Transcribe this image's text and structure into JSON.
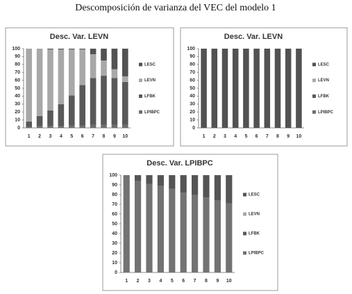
{
  "figure_title": "Descomposición de varianza del VEC del modelo 1",
  "chart_data": [
    {
      "type": "bar",
      "stacked": true,
      "title": "Desc. Var. LEVN",
      "categories": [
        "1",
        "2",
        "3",
        "4",
        "5",
        "6",
        "7",
        "8",
        "9",
        "10"
      ],
      "ylim": [
        0,
        100
      ],
      "yticks": [
        0,
        10,
        20,
        30,
        40,
        50,
        60,
        70,
        80,
        90,
        100
      ],
      "grid": false,
      "legend": "right",
      "series": [
        {
          "name": "LPIBPC",
          "color": "#6e6e6e",
          "values": [
            1,
            2,
            2,
            2,
            3,
            3,
            4,
            4,
            4,
            4
          ]
        },
        {
          "name": "LFBK",
          "color": "#595959",
          "values": [
            7,
            13,
            20,
            28,
            38,
            51,
            59,
            62,
            59,
            54
          ]
        },
        {
          "name": "LEVN",
          "color": "#a8a8a8",
          "values": [
            92,
            85,
            77,
            69,
            58,
            45,
            30,
            19,
            11,
            7
          ]
        },
        {
          "name": "LESC",
          "color": "#525252",
          "values": [
            0,
            0,
            1,
            1,
            1,
            1,
            7,
            15,
            26,
            35
          ]
        }
      ]
    },
    {
      "type": "bar",
      "stacked": true,
      "title": "Desc. Var. LEVN",
      "categories": [
        "1",
        "2",
        "3",
        "4",
        "5",
        "6",
        "7",
        "8",
        "9",
        "10"
      ],
      "ylim": [
        0,
        100
      ],
      "yticks": [
        0,
        10,
        20,
        30,
        40,
        50,
        60,
        70,
        80,
        90,
        100
      ],
      "grid": false,
      "legend": "right",
      "series": [
        {
          "name": "LPIBPC",
          "color": "#6e6e6e",
          "values": [
            0,
            0,
            0,
            0,
            0,
            0,
            0,
            0,
            0,
            0
          ]
        },
        {
          "name": "LFBK",
          "color": "#595959",
          "values": [
            0,
            0,
            0,
            0,
            0,
            0,
            0,
            0,
            0,
            0
          ]
        },
        {
          "name": "LEVN",
          "color": "#a8a8a8",
          "values": [
            0,
            0,
            0,
            0,
            0,
            0,
            0,
            0,
            0,
            0
          ]
        },
        {
          "name": "LESC",
          "color": "#525252",
          "values": [
            100,
            100,
            100,
            100,
            100,
            100,
            100,
            100,
            100,
            100
          ]
        }
      ]
    },
    {
      "type": "bar",
      "stacked": true,
      "title": "Desc. Var. LPIBPC",
      "categories": [
        "1",
        "2",
        "3",
        "4",
        "5",
        "6",
        "7",
        "8",
        "9",
        "10"
      ],
      "ylim": [
        0,
        100
      ],
      "yticks": [
        0,
        10,
        20,
        30,
        40,
        50,
        60,
        70,
        80,
        90,
        100
      ],
      "grid": false,
      "legend": "right",
      "series": [
        {
          "name": "LPIBPC",
          "color": "#737373",
          "values": [
            100,
            94,
            91,
            89,
            86,
            82,
            80,
            77,
            74,
            71
          ]
        },
        {
          "name": "LFBK",
          "color": "#595959",
          "values": [
            0,
            0,
            0,
            0,
            0,
            0,
            0,
            0,
            0,
            0
          ]
        },
        {
          "name": "LEVN",
          "color": "#a8a8a8",
          "values": [
            0,
            0,
            0,
            0,
            0,
            0,
            0,
            0,
            0,
            0
          ]
        },
        {
          "name": "LESC",
          "color": "#555555",
          "values": [
            0,
            6,
            9,
            11,
            14,
            18,
            20,
            23,
            26,
            29
          ]
        }
      ]
    }
  ]
}
